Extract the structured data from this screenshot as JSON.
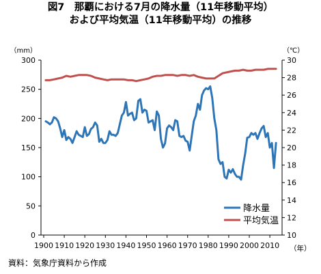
{
  "chart_data": {
    "type": "line",
    "title": [
      "図7　那覇における7月の降水量（11年移動平均）",
      "および平均気温（11年移動平均）の推移"
    ],
    "source": "資料：気象庁資料から作成",
    "xlabel": "（年）",
    "ylabel_left": "（mm）",
    "ylabel_right": "（℃）",
    "xlim": [
      1900,
      2015
    ],
    "ylim_left": [
      0,
      300
    ],
    "ylim_right": [
      10,
      30
    ],
    "x_ticks": [
      1900,
      1910,
      1920,
      1930,
      1940,
      1950,
      1960,
      1970,
      1980,
      1990,
      2000,
      2010
    ],
    "y_left_ticks": [
      0,
      50,
      100,
      150,
      200,
      250,
      300
    ],
    "y_right_ticks": [
      10,
      12,
      14,
      16,
      18,
      20,
      22,
      24,
      26,
      28,
      30
    ],
    "grid": false,
    "legend_position": "lower-right",
    "series": [
      {
        "name": "降水量",
        "axis": "left",
        "color": "#2e75b6",
        "points": [
          [
            1901,
            195
          ],
          [
            1902,
            193
          ],
          [
            1903,
            190
          ],
          [
            1904,
            193
          ],
          [
            1905,
            202
          ],
          [
            1906,
            200
          ],
          [
            1907,
            195
          ],
          [
            1908,
            183
          ],
          [
            1909,
            168
          ],
          [
            1910,
            180
          ],
          [
            1911,
            163
          ],
          [
            1912,
            168
          ],
          [
            1913,
            165
          ],
          [
            1914,
            158
          ],
          [
            1915,
            168
          ],
          [
            1916,
            178
          ],
          [
            1917,
            172
          ],
          [
            1918,
            170
          ],
          [
            1919,
            168
          ],
          [
            1920,
            185
          ],
          [
            1921,
            170
          ],
          [
            1922,
            173
          ],
          [
            1923,
            182
          ],
          [
            1924,
            185
          ],
          [
            1925,
            193
          ],
          [
            1926,
            188
          ],
          [
            1927,
            160
          ],
          [
            1928,
            165
          ],
          [
            1929,
            158
          ],
          [
            1930,
            158
          ],
          [
            1931,
            163
          ],
          [
            1932,
            178
          ],
          [
            1933,
            172
          ],
          [
            1934,
            172
          ],
          [
            1935,
            170
          ],
          [
            1936,
            175
          ],
          [
            1937,
            190
          ],
          [
            1938,
            205
          ],
          [
            1939,
            210
          ],
          [
            1940,
            228
          ],
          [
            1941,
            205
          ],
          [
            1942,
            208
          ],
          [
            1943,
            210
          ],
          [
            1944,
            197
          ],
          [
            1945,
            200
          ],
          [
            1946,
            230
          ],
          [
            1947,
            233
          ],
          [
            1948,
            210
          ],
          [
            1949,
            215
          ],
          [
            1950,
            213
          ],
          [
            1951,
            193
          ],
          [
            1952,
            195
          ],
          [
            1953,
            197
          ],
          [
            1954,
            180
          ],
          [
            1955,
            212
          ],
          [
            1956,
            205
          ],
          [
            1957,
            165
          ],
          [
            1958,
            150
          ],
          [
            1959,
            157
          ],
          [
            1960,
            183
          ],
          [
            1961,
            188
          ],
          [
            1962,
            185
          ],
          [
            1963,
            180
          ],
          [
            1964,
            197
          ],
          [
            1965,
            195
          ],
          [
            1966,
            170
          ],
          [
            1967,
            168
          ],
          [
            1968,
            170
          ],
          [
            1969,
            162
          ],
          [
            1970,
            160
          ],
          [
            1971,
            145
          ],
          [
            1972,
            170
          ],
          [
            1973,
            195
          ],
          [
            1974,
            205
          ],
          [
            1975,
            225
          ],
          [
            1976,
            215
          ],
          [
            1977,
            240
          ],
          [
            1978,
            248
          ],
          [
            1979,
            252
          ],
          [
            1980,
            250
          ],
          [
            1981,
            255
          ],
          [
            1982,
            235
          ],
          [
            1983,
            200
          ],
          [
            1984,
            180
          ],
          [
            1985,
            130
          ],
          [
            1986,
            122
          ],
          [
            1987,
            125
          ],
          [
            1988,
            100
          ],
          [
            1989,
            97
          ],
          [
            1990,
            112
          ],
          [
            1991,
            107
          ],
          [
            1992,
            113
          ],
          [
            1993,
            105
          ],
          [
            1994,
            100
          ],
          [
            1995,
            100
          ],
          [
            1996,
            95
          ],
          [
            1997,
            120
          ],
          [
            1998,
            140
          ],
          [
            1999,
            167
          ],
          [
            2000,
            168
          ],
          [
            2001,
            175
          ],
          [
            2002,
            172
          ],
          [
            2003,
            175
          ],
          [
            2004,
            165
          ],
          [
            2005,
            175
          ],
          [
            2006,
            183
          ],
          [
            2007,
            187
          ],
          [
            2008,
            168
          ],
          [
            2009,
            175
          ],
          [
            2010,
            150
          ],
          [
            2011,
            158
          ],
          [
            2012,
            115
          ],
          [
            2013,
            158
          ]
        ]
      },
      {
        "name": "平均気温",
        "axis": "right",
        "color": "#c0504d",
        "points": [
          [
            1901,
            27.7
          ],
          [
            1903,
            27.7
          ],
          [
            1905,
            27.8
          ],
          [
            1907,
            27.9
          ],
          [
            1909,
            28.0
          ],
          [
            1911,
            28.2
          ],
          [
            1913,
            28.1
          ],
          [
            1915,
            28.2
          ],
          [
            1917,
            28.3
          ],
          [
            1919,
            28.3
          ],
          [
            1921,
            28.3
          ],
          [
            1923,
            28.2
          ],
          [
            1925,
            28.0
          ],
          [
            1927,
            27.9
          ],
          [
            1929,
            27.8
          ],
          [
            1931,
            27.7
          ],
          [
            1933,
            27.8
          ],
          [
            1935,
            27.8
          ],
          [
            1937,
            27.8
          ],
          [
            1939,
            27.8
          ],
          [
            1941,
            27.7
          ],
          [
            1943,
            27.7
          ],
          [
            1945,
            27.6
          ],
          [
            1947,
            27.7
          ],
          [
            1949,
            27.8
          ],
          [
            1951,
            27.9
          ],
          [
            1953,
            28.1
          ],
          [
            1955,
            28.2
          ],
          [
            1957,
            28.2
          ],
          [
            1959,
            28.3
          ],
          [
            1961,
            28.3
          ],
          [
            1963,
            28.3
          ],
          [
            1965,
            28.2
          ],
          [
            1967,
            28.3
          ],
          [
            1969,
            28.3
          ],
          [
            1971,
            28.2
          ],
          [
            1973,
            28.3
          ],
          [
            1975,
            28.1
          ],
          [
            1977,
            28.0
          ],
          [
            1979,
            27.9
          ],
          [
            1981,
            27.9
          ],
          [
            1983,
            27.9
          ],
          [
            1985,
            28.2
          ],
          [
            1987,
            28.5
          ],
          [
            1989,
            28.6
          ],
          [
            1991,
            28.7
          ],
          [
            1993,
            28.8
          ],
          [
            1995,
            28.8
          ],
          [
            1997,
            28.9
          ],
          [
            1999,
            28.8
          ],
          [
            2001,
            28.8
          ],
          [
            2003,
            28.9
          ],
          [
            2005,
            28.9
          ],
          [
            2007,
            28.9
          ],
          [
            2009,
            29.0
          ],
          [
            2011,
            29.0
          ],
          [
            2013,
            29.0
          ]
        ]
      }
    ]
  }
}
